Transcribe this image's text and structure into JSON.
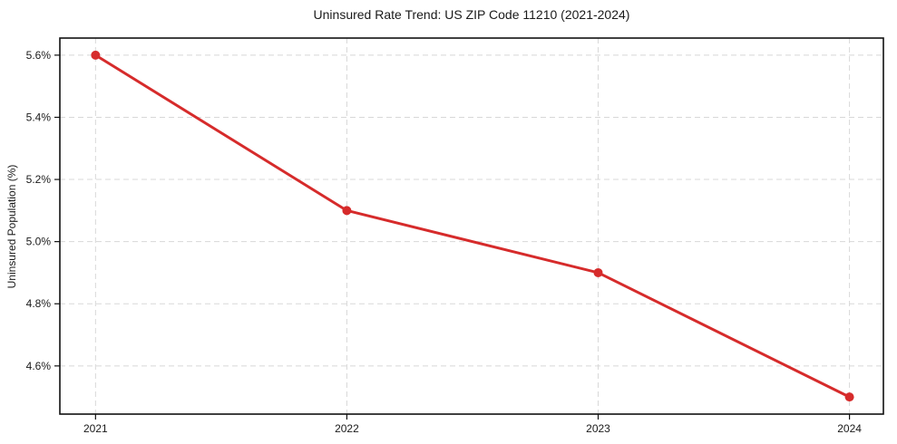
{
  "page": {
    "background": "#ffffff"
  },
  "chart_data": {
    "type": "line",
    "title": "Uninsured Rate Trend: US ZIP Code 11210 (2021-2024)",
    "xlabel": "",
    "ylabel": "Uninsured Population (%)",
    "categories": [
      "2021",
      "2022",
      "2023",
      "2024"
    ],
    "series": [
      {
        "name": "Uninsured Rate",
        "values": [
          5.6,
          5.1,
          4.9,
          4.5
        ],
        "color": "#d62b2b",
        "line_width": 3,
        "marker": "circle",
        "marker_radius": 5
      }
    ],
    "yticks": [
      4.6,
      4.8,
      5.0,
      5.2,
      5.4,
      5.6
    ],
    "ytick_labels": [
      "4.6%",
      "4.8%",
      "5.0%",
      "5.2%",
      "5.4%",
      "5.6%"
    ],
    "ylim": [
      4.445,
      5.655
    ],
    "xlim": [
      -0.142,
      3.135
    ],
    "grid": {
      "show": true,
      "style": "dashed",
      "color": "#d8d8d8"
    },
    "legend": {
      "show": false,
      "position": "none"
    },
    "spine_color": "#111111",
    "tick_color": "#111111",
    "tick_label_color": "#1a1a1a"
  }
}
